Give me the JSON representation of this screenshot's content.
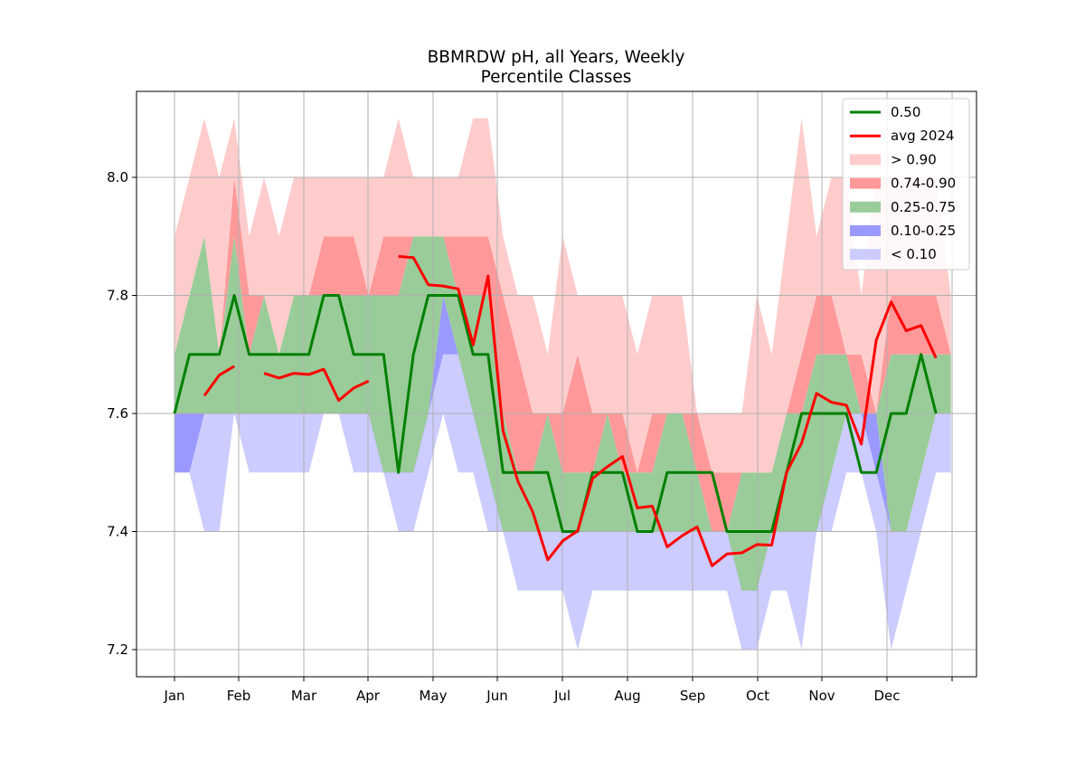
{
  "chart_data": {
    "type": "area",
    "title": "BBMRDW pH, all Years, Weekly",
    "subtitle": "Percentile Classes",
    "xlabel": "",
    "ylabel": "",
    "x_tick_labels": [
      "Jan",
      "Feb",
      "Mar",
      "Apr",
      "May",
      "Jun",
      "Jul",
      "Aug",
      "Sep",
      "Oct",
      "Nov",
      "Dec",
      ""
    ],
    "y_ticks": [
      7.2,
      7.4,
      7.6,
      7.8,
      8.0
    ],
    "y_tick_labels": [
      "7.2",
      "7.4",
      "7.6",
      "7.8",
      "8.0"
    ],
    "ylim": [
      7.15,
      8.15
    ],
    "grid": true,
    "legend_position": "top-right",
    "x_unit": "week",
    "weeks": [
      1,
      2,
      3,
      4,
      5,
      6,
      7,
      8,
      9,
      10,
      11,
      12,
      13,
      14,
      15,
      16,
      17,
      18,
      19,
      20,
      21,
      22,
      23,
      24,
      25,
      26,
      27,
      28,
      29,
      30,
      31,
      32,
      33,
      34,
      35,
      36,
      37,
      38,
      39,
      40,
      41,
      42,
      43,
      44,
      45,
      46,
      47,
      48,
      49,
      50,
      51,
      52,
      53
    ],
    "percentile_bounds": {
      "p0": [
        7.5,
        7.5,
        7.4,
        7.4,
        7.6,
        7.5,
        7.5,
        7.5,
        7.5,
        7.5,
        7.6,
        7.6,
        7.5,
        7.5,
        7.5,
        7.4,
        7.4,
        7.5,
        7.6,
        7.5,
        7.5,
        7.4,
        7.4,
        7.3,
        7.3,
        7.3,
        7.3,
        7.2,
        7.3,
        7.3,
        7.3,
        7.3,
        7.3,
        7.3,
        7.3,
        7.3,
        7.3,
        7.3,
        7.2,
        7.2,
        7.3,
        7.3,
        7.2,
        7.4,
        7.4,
        7.5,
        7.5,
        7.4,
        7.2,
        7.3,
        7.4,
        7.5,
        7.5
      ],
      "p10": [
        7.5,
        7.5,
        7.6,
        7.6,
        7.7,
        7.6,
        7.6,
        7.6,
        7.6,
        7.6,
        7.7,
        7.7,
        7.6,
        7.6,
        7.6,
        7.7,
        7.7,
        7.6,
        7.7,
        7.7,
        7.7,
        7.5,
        7.5,
        7.4,
        7.4,
        7.4,
        7.4,
        7.4,
        7.4,
        7.4,
        7.4,
        7.4,
        7.4,
        7.4,
        7.4,
        7.4,
        7.4,
        7.4,
        7.4,
        7.4,
        7.4,
        7.4,
        7.4,
        7.5,
        7.5,
        7.6,
        7.6,
        7.5,
        7.4,
        7.4,
        7.5,
        7.6,
        7.6
      ],
      "p25": [
        7.6,
        7.6,
        7.6,
        7.6,
        7.6,
        7.6,
        7.6,
        7.6,
        7.6,
        7.6,
        7.6,
        7.6,
        7.6,
        7.6,
        7.5,
        7.5,
        7.5,
        7.6,
        7.8,
        7.7,
        7.6,
        7.5,
        7.4,
        7.4,
        7.4,
        7.4,
        7.4,
        7.4,
        7.4,
        7.4,
        7.4,
        7.4,
        7.4,
        7.4,
        7.4,
        7.4,
        7.4,
        7.4,
        7.3,
        7.3,
        7.4,
        7.4,
        7.4,
        7.4,
        7.5,
        7.6,
        7.6,
        7.6,
        7.4,
        7.4,
        7.5,
        7.6,
        7.6
      ],
      "p75": [
        7.7,
        7.8,
        7.9,
        7.7,
        7.9,
        7.7,
        7.8,
        7.7,
        7.8,
        7.8,
        7.8,
        7.8,
        7.8,
        7.8,
        7.8,
        7.8,
        7.9,
        7.9,
        7.9,
        7.8,
        7.8,
        7.8,
        7.6,
        7.5,
        7.5,
        7.6,
        7.5,
        7.5,
        7.5,
        7.6,
        7.5,
        7.5,
        7.5,
        7.6,
        7.6,
        7.5,
        7.4,
        7.4,
        7.5,
        7.5,
        7.5,
        7.6,
        7.6,
        7.7,
        7.7,
        7.7,
        7.6,
        7.6,
        7.7,
        7.7,
        7.7,
        7.7,
        7.7
      ],
      "p90": [
        7.7,
        7.8,
        7.9,
        7.7,
        8.0,
        7.8,
        7.8,
        7.7,
        7.8,
        7.8,
        7.9,
        7.9,
        7.9,
        7.8,
        7.9,
        7.9,
        7.9,
        7.9,
        7.9,
        7.9,
        7.9,
        7.9,
        7.8,
        7.7,
        7.6,
        7.6,
        7.6,
        7.7,
        7.6,
        7.6,
        7.6,
        7.5,
        7.6,
        7.6,
        7.6,
        7.6,
        7.5,
        7.5,
        7.5,
        7.5,
        7.5,
        7.6,
        7.7,
        7.8,
        7.8,
        7.7,
        7.7,
        7.6,
        7.8,
        7.8,
        7.8,
        7.8,
        7.7
      ],
      "p100": [
        7.9,
        8.0,
        8.1,
        8.0,
        8.1,
        7.9,
        8.0,
        7.9,
        8.0,
        8.0,
        8.0,
        8.0,
        8.0,
        8.0,
        8.0,
        8.1,
        8.0,
        8.0,
        8.0,
        8.0,
        8.1,
        8.1,
        7.9,
        7.8,
        7.8,
        7.7,
        7.9,
        7.8,
        7.8,
        7.8,
        7.8,
        7.7,
        7.8,
        7.8,
        7.8,
        7.6,
        7.6,
        7.6,
        7.6,
        7.8,
        7.7,
        7.9,
        8.1,
        7.9,
        8.0,
        8.0,
        7.8,
        8.0,
        8.0,
        8.0,
        8.0,
        8.0,
        7.8
      ]
    },
    "series": [
      {
        "name": "0.50",
        "color": "#008000",
        "values": [
          7.6,
          7.7,
          7.7,
          7.7,
          7.8,
          7.7,
          7.7,
          7.7,
          7.7,
          7.7,
          7.8,
          7.8,
          7.7,
          7.7,
          7.7,
          7.5,
          7.7,
          7.8,
          7.8,
          7.8,
          7.7,
          7.7,
          7.5,
          7.5,
          7.5,
          7.5,
          7.4,
          7.4,
          7.5,
          7.5,
          7.5,
          7.4,
          7.4,
          7.5,
          7.5,
          7.5,
          7.5,
          7.4,
          7.4,
          7.4,
          7.4,
          7.5,
          7.6,
          7.6,
          7.6,
          7.6,
          7.5,
          7.5,
          7.6,
          7.6,
          7.7,
          7.6,
          null
        ]
      },
      {
        "name": "avg 2024",
        "color": "#ff0000",
        "values": [
          null,
          null,
          7.63,
          7.665,
          7.68,
          null,
          7.668,
          7.66,
          7.668,
          7.666,
          7.675,
          7.622,
          7.643,
          7.655,
          null,
          7.866,
          7.864,
          7.818,
          7.816,
          7.811,
          7.716,
          7.833,
          7.571,
          7.485,
          7.433,
          7.352,
          7.384,
          7.401,
          7.49,
          7.51,
          7.527,
          7.44,
          7.443,
          7.374,
          7.393,
          7.408,
          7.342,
          7.362,
          7.364,
          7.378,
          7.377,
          7.5,
          7.55,
          7.634,
          7.619,
          7.614,
          7.548,
          7.724,
          7.789,
          7.74,
          7.749,
          7.694,
          null
        ]
      }
    ],
    "legend": [
      {
        "label": "0.50",
        "kind": "line",
        "color": "#008000"
      },
      {
        "label": "avg 2024",
        "kind": "line",
        "color": "#ff0000"
      },
      {
        "label": "> 0.90",
        "kind": "patch",
        "color": "#ffcccc"
      },
      {
        "label": "0.74-0.90",
        "kind": "patch",
        "color": "#ff9999"
      },
      {
        "label": "0.25-0.75",
        "kind": "patch",
        "color": "#99cc99"
      },
      {
        "label": "0.10-0.25",
        "kind": "patch",
        "color": "#9999ff"
      },
      {
        "label": "< 0.10",
        "kind": "patch",
        "color": "#ccccff"
      }
    ]
  }
}
